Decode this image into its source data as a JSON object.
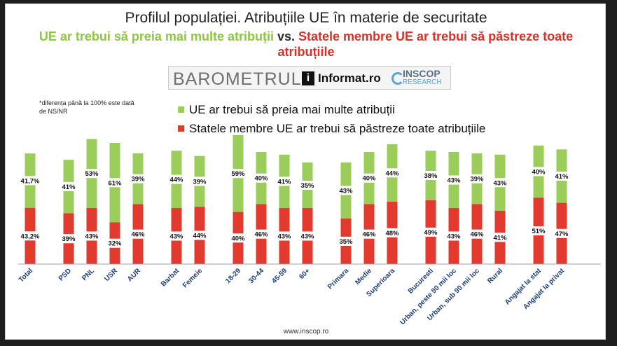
{
  "header": {
    "title": "Profilul populației. Atribuțiile UE în materie de securitate",
    "subtitle_green": "UE ar trebui să preia mai multe atribuții",
    "subtitle_vs": " vs. ",
    "subtitle_red": "Statele membre UE ar trebui să păstreze toate atribuțiile"
  },
  "logos": {
    "barometrul": "BAROMETRUL",
    "informat_icon": "i",
    "informat": "Informat.ro",
    "inscop": "INSCOP",
    "inscop_sub": "RESEARCH"
  },
  "footnote": "*diferența până la 100% este dată de NS/NR",
  "legend": {
    "green": "UE ar trebui să preia mai multe atribuții",
    "red": "Statele membre UE ar trebui să păstreze toate atribuțiile"
  },
  "footer": {
    "url": "www.inscop.ro"
  },
  "colors": {
    "green": "#9acd5a",
    "red": "#e23a2e",
    "label_bg": "#ffffff"
  },
  "chart_data": {
    "type": "bar",
    "stacked": true,
    "title": "Profilul populației. Atribuțiile UE în materie de securitate",
    "categories": [
      "Total",
      "PSD",
      "PNL",
      "USR",
      "AUR",
      "Barbat",
      "Femeie",
      "18-29",
      "30-44",
      "45-59",
      "60+",
      "Primara",
      "Medie",
      "Superioara",
      "Bucuresti",
      "Urban, peste 90 mii loc",
      "Urban, sub 90 mii loc",
      "Rural",
      "Angajat la stat",
      "Angajat la privat"
    ],
    "groups": [
      [
        0
      ],
      [
        1,
        2,
        3,
        4
      ],
      [
        5,
        6
      ],
      [
        7,
        8,
        9,
        10
      ],
      [
        11,
        12,
        13
      ],
      [
        14,
        15,
        16,
        17
      ],
      [
        18,
        19
      ]
    ],
    "series": [
      {
        "name": "Statele membre UE ar trebui să păstreze toate atribuțiile",
        "color": "#e23a2e",
        "values": [
          43.2,
          39,
          43,
          32,
          46,
          43,
          44,
          40,
          46,
          43,
          43,
          35,
          46,
          48,
          49,
          43,
          46,
          41,
          51,
          47
        ],
        "labels": [
          "43,2%",
          "39%",
          "43%",
          "32%",
          "46%",
          "43%",
          "44%",
          "40%",
          "46%",
          "43%",
          "43%",
          "35%",
          "46%",
          "48%",
          "49%",
          "43%",
          "46%",
          "41%",
          "51%",
          "47%"
        ]
      },
      {
        "name": "UE ar trebui să preia mai multe atribuții",
        "color": "#9acd5a",
        "values": [
          41.7,
          41,
          53,
          61,
          39,
          44,
          39,
          59,
          40,
          41,
          35,
          43,
          40,
          44,
          38,
          43,
          39,
          43,
          40,
          41
        ],
        "labels": [
          "41,7%",
          "41%",
          "53%",
          "61%",
          "39%",
          "44%",
          "39%",
          "59%",
          "40%",
          "41%",
          "35%",
          "43%",
          "40%",
          "44%",
          "38%",
          "43%",
          "39%",
          "43%",
          "40%",
          "41%"
        ]
      }
    ],
    "ylim": [
      0,
      100
    ],
    "grid": false,
    "legend": "top"
  }
}
